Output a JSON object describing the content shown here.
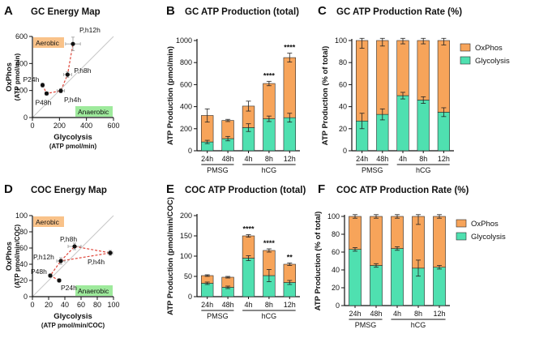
{
  "colors": {
    "oxphos": "#F7A45A",
    "glycolysis": "#4FE0B0",
    "aerobic_box": "#F9C289",
    "anaerobic_box": "#9EEA9C",
    "connector": "#E0463A",
    "diagonal": "#C8C8C8",
    "axis": "#111111"
  },
  "chart_data": [
    {
      "id": "A",
      "letter": "A",
      "type": "scatter",
      "title": "GC Energy Map",
      "xlabel": "Glycolysis",
      "xlabel_sub": "(ATP pmol/min)",
      "ylabel": "OxPhos",
      "ylabel_sub": "(ATP pmol/min)",
      "xlim": [
        0,
        600
      ],
      "ylim": [
        0,
        600
      ],
      "xticks": [
        0,
        200,
        400,
        600
      ],
      "yticks": [
        0,
        200,
        400,
        600
      ],
      "tag_top": "Aerobic",
      "tag_bottom": "Anaerobic",
      "points": [
        {
          "label": "P24h",
          "x": 75,
          "y": 240,
          "xerr": 10,
          "yerr": 15
        },
        {
          "label": "P48h",
          "x": 105,
          "y": 178,
          "xerr": 12,
          "yerr": 12
        },
        {
          "label": "P,h4h",
          "x": 210,
          "y": 198,
          "xerr": 28,
          "yerr": 15
        },
        {
          "label": "P,h8h",
          "x": 260,
          "y": 318,
          "xerr": 30,
          "yerr": 20
        },
        {
          "label": "P,h12h",
          "x": 300,
          "y": 545,
          "xerr": 55,
          "yerr": 50
        }
      ],
      "path_order": [
        "P24h",
        "P48h",
        "P,h4h",
        "P,h8h",
        "P,h12h"
      ]
    },
    {
      "id": "B",
      "letter": "B",
      "type": "bar",
      "stacked": true,
      "title": "GC ATP Production (total)",
      "ylabel": "ATP Production (pmol/min)",
      "ylim": [
        0,
        1000
      ],
      "yticks": [
        0,
        200,
        400,
        600,
        800,
        1000
      ],
      "categories": [
        "24h",
        "48h",
        "4h",
        "8h",
        "12h"
      ],
      "groups": [
        {
          "label": "PMSG",
          "from": 0,
          "to": 1
        },
        {
          "label": "hCG",
          "from": 2,
          "to": 4
        }
      ],
      "series": [
        {
          "name": "Glycolysis",
          "values": [
            80,
            110,
            210,
            290,
            300
          ],
          "errors": [
            15,
            20,
            35,
            25,
            40
          ]
        },
        {
          "name": "OxPhos",
          "values": [
            240,
            165,
            195,
            320,
            545
          ],
          "errors": [
            60,
            10,
            45,
            20,
            40
          ]
        }
      ],
      "significance": [
        "",
        "",
        "",
        "****",
        "****"
      ]
    },
    {
      "id": "C",
      "letter": "C",
      "type": "bar",
      "stacked": true,
      "title": "GC ATP Production Rate (%)",
      "ylabel": "ATP Production (% of total)",
      "ylim": [
        0,
        100
      ],
      "yticks": [
        0,
        20,
        40,
        60,
        80,
        100
      ],
      "categories": [
        "24h",
        "48h",
        "4h",
        "8h",
        "12h"
      ],
      "groups": [
        {
          "label": "PMSG",
          "from": 0,
          "to": 1
        },
        {
          "label": "hCG",
          "from": 2,
          "to": 4
        }
      ],
      "series": [
        {
          "name": "Glycolysis",
          "values": [
            27,
            33,
            50,
            46,
            35
          ],
          "errors": [
            7,
            5,
            3,
            3,
            4
          ]
        },
        {
          "name": "OxPhos",
          "values": [
            73,
            67,
            50,
            54,
            65
          ],
          "errors": [
            7,
            5,
            3,
            3,
            4
          ]
        }
      ],
      "legend": [
        "OxPhos",
        "Glycolysis"
      ]
    },
    {
      "id": "D",
      "letter": "D",
      "type": "scatter",
      "title": "COC Energy Map",
      "xlabel": "Glycolysis",
      "xlabel_sub": "(ATP pmol/min/COC)",
      "ylabel": "OxPhos",
      "ylabel_sub": "(ATP pmol/min/COC)",
      "xlim": [
        0,
        100
      ],
      "ylim": [
        0,
        100
      ],
      "xticks": [
        0,
        20,
        40,
        60,
        80,
        100
      ],
      "yticks": [
        0,
        20,
        40,
        60,
        80,
        100
      ],
      "tag_top": "Aerobic",
      "tag_bottom": "Anaerobic",
      "points": [
        {
          "label": "P24h",
          "x": 33,
          "y": 20,
          "xerr": 2,
          "yerr": 2
        },
        {
          "label": "P48h",
          "x": 22,
          "y": 26,
          "xerr": 2,
          "yerr": 2
        },
        {
          "label": "P,h4h",
          "x": 96,
          "y": 54,
          "xerr": 3,
          "yerr": 3
        },
        {
          "label": "P,h8h",
          "x": 52,
          "y": 62,
          "xerr": 8,
          "yerr": 4
        },
        {
          "label": "P,h12h",
          "x": 35,
          "y": 44,
          "xerr": 5,
          "yerr": 4
        }
      ],
      "path_order": [
        "P24h",
        "P48h",
        "P,h12h",
        "P,h8h",
        "P,h4h",
        "P,h12h"
      ]
    },
    {
      "id": "E",
      "letter": "E",
      "type": "bar",
      "stacked": true,
      "title": "COC ATP Production (total)",
      "ylabel": "ATP Production (pmol/min/COC)",
      "ylim": [
        0,
        200
      ],
      "yticks": [
        0,
        50,
        100,
        150,
        200
      ],
      "categories": [
        "24h",
        "48h",
        "4h",
        "8h",
        "12h"
      ],
      "groups": [
        {
          "label": "PMSG",
          "from": 0,
          "to": 1
        },
        {
          "label": "hCG",
          "from": 2,
          "to": 4
        }
      ],
      "series": [
        {
          "name": "Glycolysis",
          "values": [
            33,
            23,
            95,
            52,
            35
          ],
          "errors": [
            3,
            3,
            6,
            15,
            5
          ]
        },
        {
          "name": "OxPhos",
          "values": [
            19,
            25,
            55,
            62,
            45
          ],
          "errors": [
            2,
            2,
            3,
            4,
            3
          ]
        }
      ],
      "significance": [
        "",
        "",
        "****",
        "****",
        "**"
      ]
    },
    {
      "id": "F",
      "letter": "F",
      "type": "bar",
      "stacked": true,
      "title": "COC ATP Production Rate (%)",
      "ylabel": "ATP Production (% of total)",
      "ylim": [
        0,
        100
      ],
      "yticks": [
        0,
        20,
        40,
        60,
        80,
        100
      ],
      "categories": [
        "24h",
        "48h",
        "4h",
        "8h",
        "12h"
      ],
      "groups": [
        {
          "label": "PMSG",
          "from": 0,
          "to": 1
        },
        {
          "label": "hCG",
          "from": 2,
          "to": 4
        }
      ],
      "series": [
        {
          "name": "Glycolysis",
          "values": [
            63,
            45,
            64,
            42,
            43
          ],
          "errors": [
            2,
            2,
            2,
            9,
            2
          ]
        },
        {
          "name": "OxPhos",
          "values": [
            37,
            55,
            36,
            58,
            57
          ],
          "errors": [
            2,
            2,
            2,
            9,
            2
          ]
        }
      ],
      "legend": [
        "OxPhos",
        "Glycolysis"
      ]
    }
  ]
}
